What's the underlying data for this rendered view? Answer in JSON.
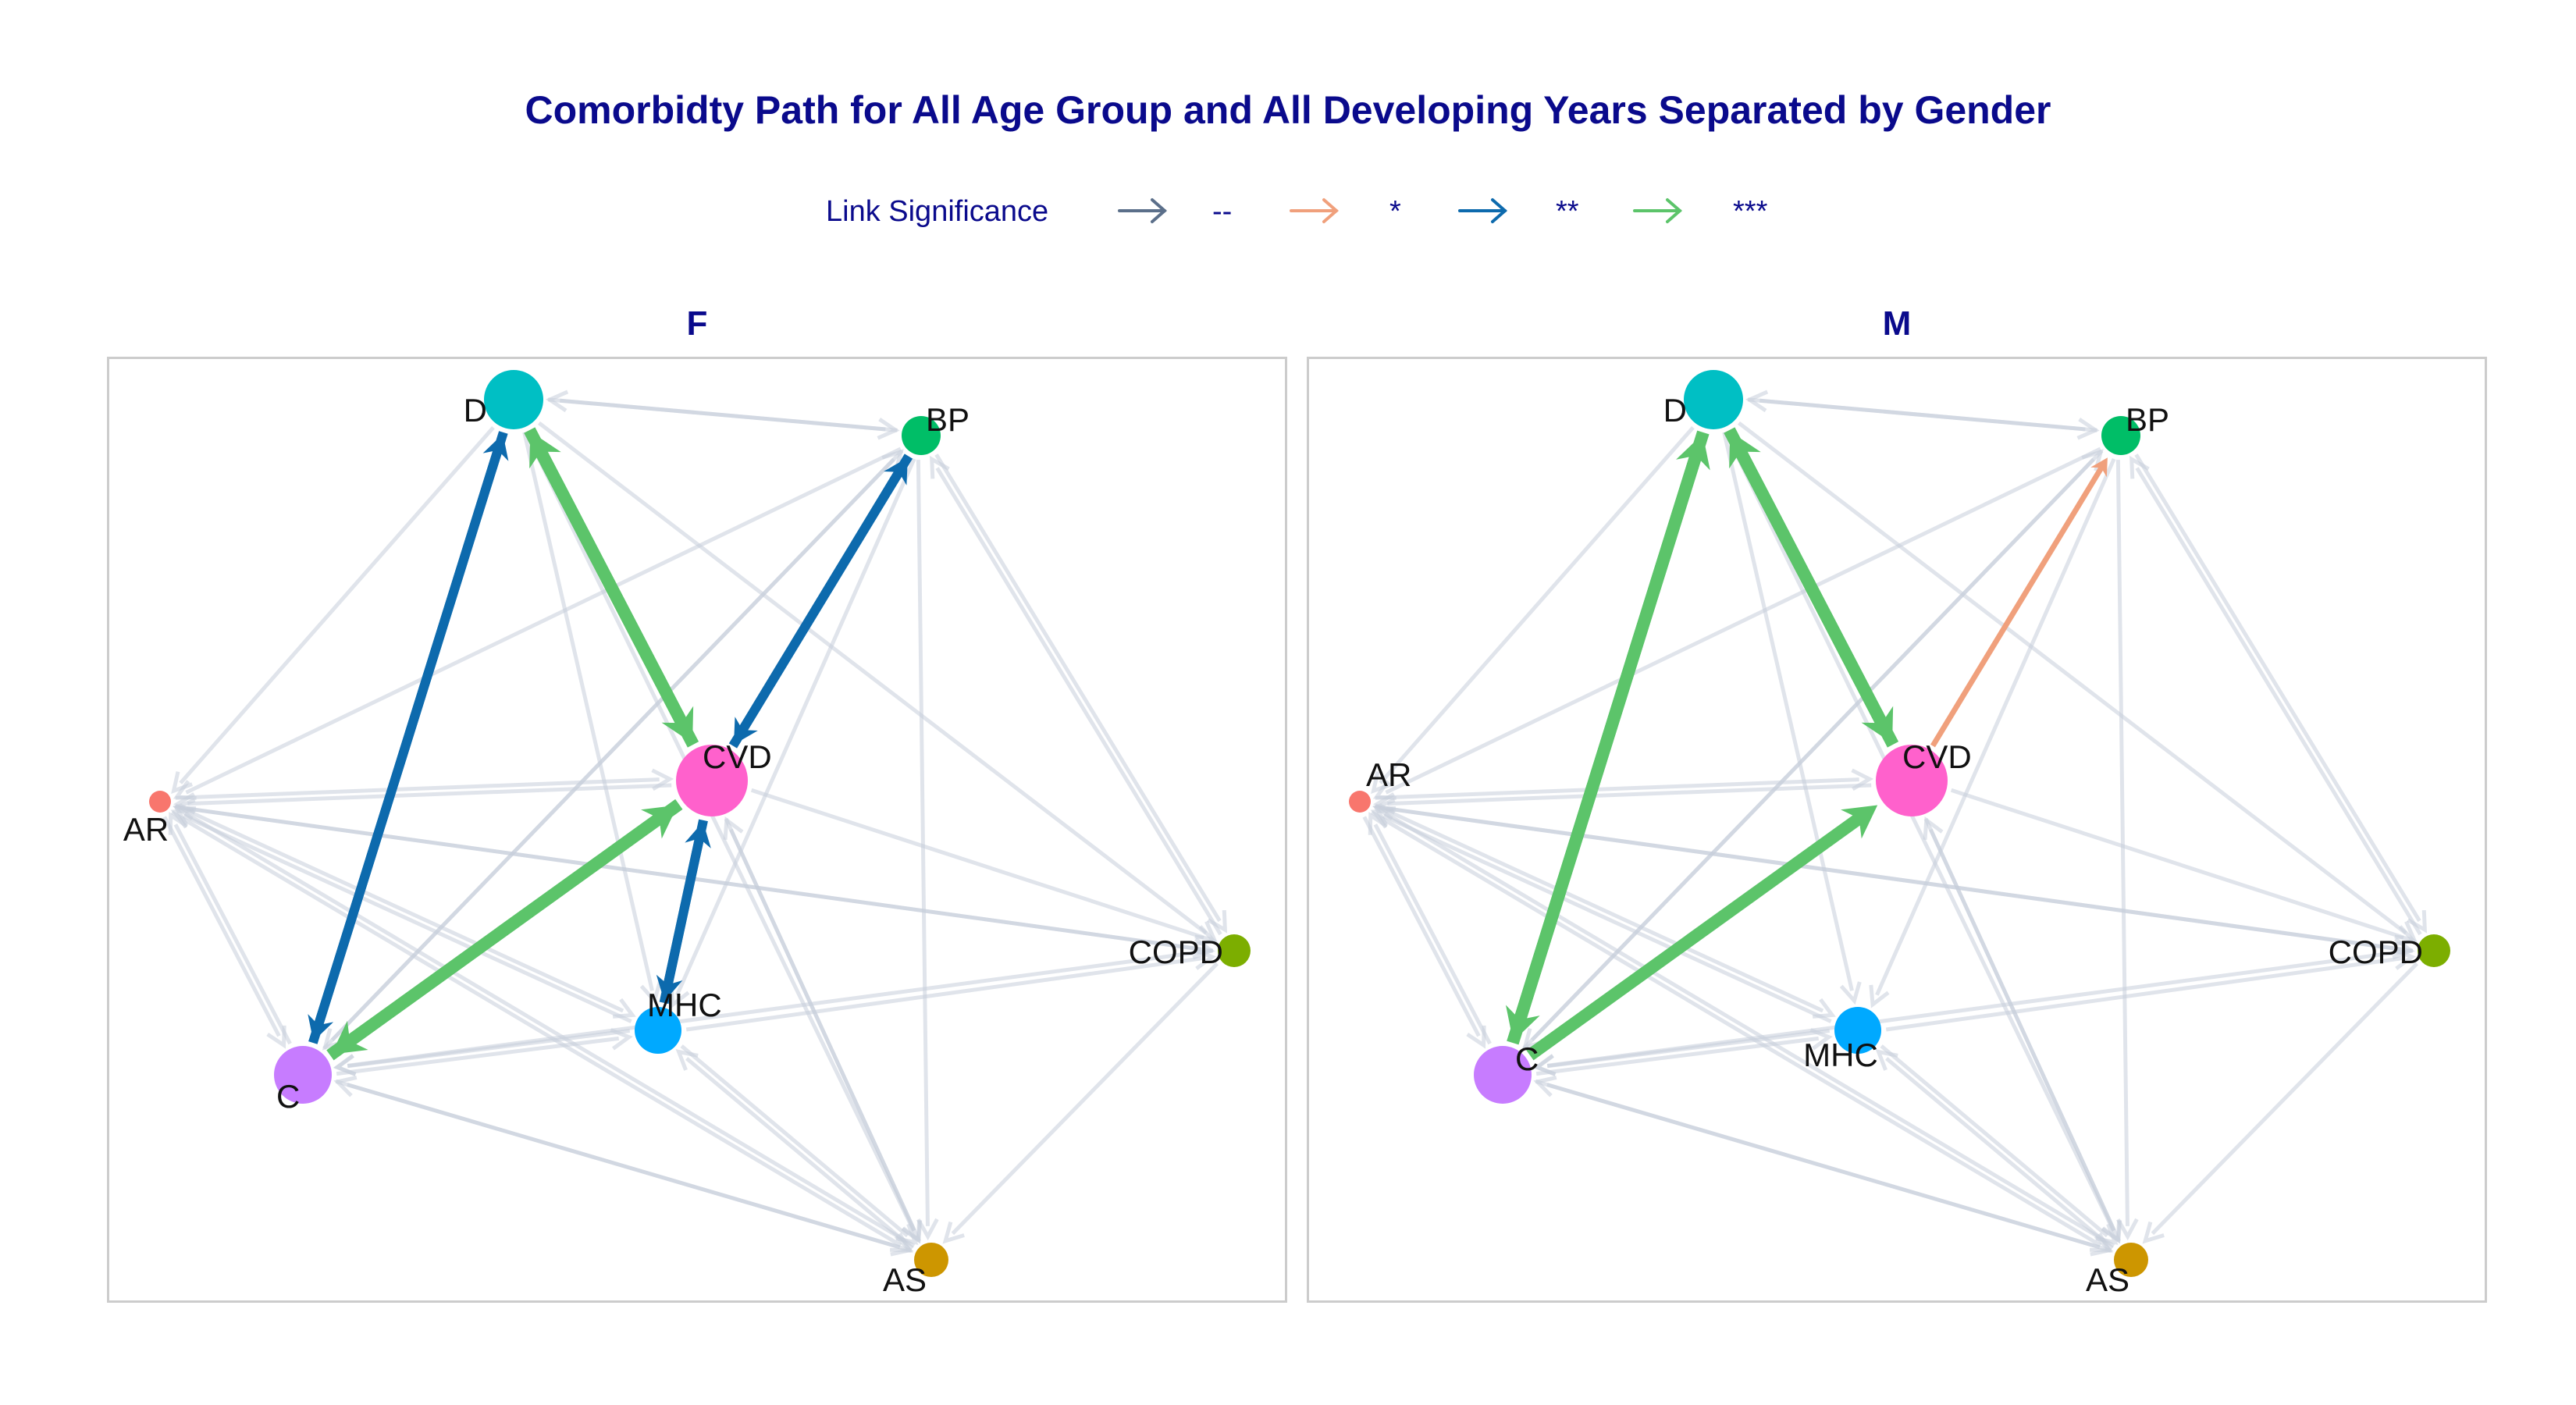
{
  "title": "Comorbidty Path for All Age Group and All Developing Years Separated by Gender",
  "legend": {
    "title": "Link Significance",
    "items": [
      {
        "label": "--",
        "color": "#5b6f8a"
      },
      {
        "label": "*",
        "color": "#f0a07c"
      },
      {
        "label": "**",
        "color": "#0d6aad"
      },
      {
        "label": "***",
        "color": "#5cc46a"
      }
    ]
  },
  "panels": [
    {
      "name": "F",
      "nodes": [
        {
          "id": "D",
          "label": "D",
          "color": "#00bfc4"
        },
        {
          "id": "BP",
          "label": "BP",
          "color": "#00be67"
        },
        {
          "id": "AR",
          "label": "AR",
          "color": "#f8766d"
        },
        {
          "id": "CVD",
          "label": "CVD",
          "color": "#ff61cc"
        },
        {
          "id": "COPD",
          "label": "COPD",
          "color": "#7cae00"
        },
        {
          "id": "MHC",
          "label": "MHC",
          "color": "#00a9ff"
        },
        {
          "id": "C",
          "label": "C",
          "color": "#c77cff"
        },
        {
          "id": "AS",
          "label": "AS",
          "color": "#cd9600"
        }
      ],
      "significant_links": [
        {
          "from": "D",
          "to": "C",
          "level": "**"
        },
        {
          "from": "C",
          "to": "D",
          "level": "**"
        },
        {
          "from": "D",
          "to": "CVD",
          "level": "***"
        },
        {
          "from": "CVD",
          "to": "D",
          "level": "***"
        },
        {
          "from": "BP",
          "to": "CVD",
          "level": "**"
        },
        {
          "from": "CVD",
          "to": "BP",
          "level": "**"
        },
        {
          "from": "C",
          "to": "CVD",
          "level": "***"
        },
        {
          "from": "CVD",
          "to": "C",
          "level": "***"
        },
        {
          "from": "CVD",
          "to": "MHC",
          "level": "**"
        },
        {
          "from": "MHC",
          "to": "CVD",
          "level": "**"
        }
      ]
    },
    {
      "name": "M",
      "nodes": [
        {
          "id": "D",
          "label": "D",
          "color": "#00bfc4"
        },
        {
          "id": "BP",
          "label": "BP",
          "color": "#00be67"
        },
        {
          "id": "AR",
          "label": "AR",
          "color": "#f8766d"
        },
        {
          "id": "CVD",
          "label": "CVD",
          "color": "#ff61cc"
        },
        {
          "id": "COPD",
          "label": "COPD",
          "color": "#7cae00"
        },
        {
          "id": "MHC",
          "label": "MHC",
          "color": "#00a9ff"
        },
        {
          "id": "C",
          "label": "C",
          "color": "#c77cff"
        },
        {
          "id": "AS",
          "label": "AS",
          "color": "#cd9600"
        }
      ],
      "significant_links": [
        {
          "from": "D",
          "to": "C",
          "level": "***"
        },
        {
          "from": "C",
          "to": "D",
          "level": "***"
        },
        {
          "from": "D",
          "to": "CVD",
          "level": "***"
        },
        {
          "from": "CVD",
          "to": "D",
          "level": "***"
        },
        {
          "from": "CVD",
          "to": "BP",
          "level": "*"
        },
        {
          "from": "C",
          "to": "CVD",
          "level": "***"
        }
      ]
    }
  ],
  "background_link_color": "#c8cfdb"
}
